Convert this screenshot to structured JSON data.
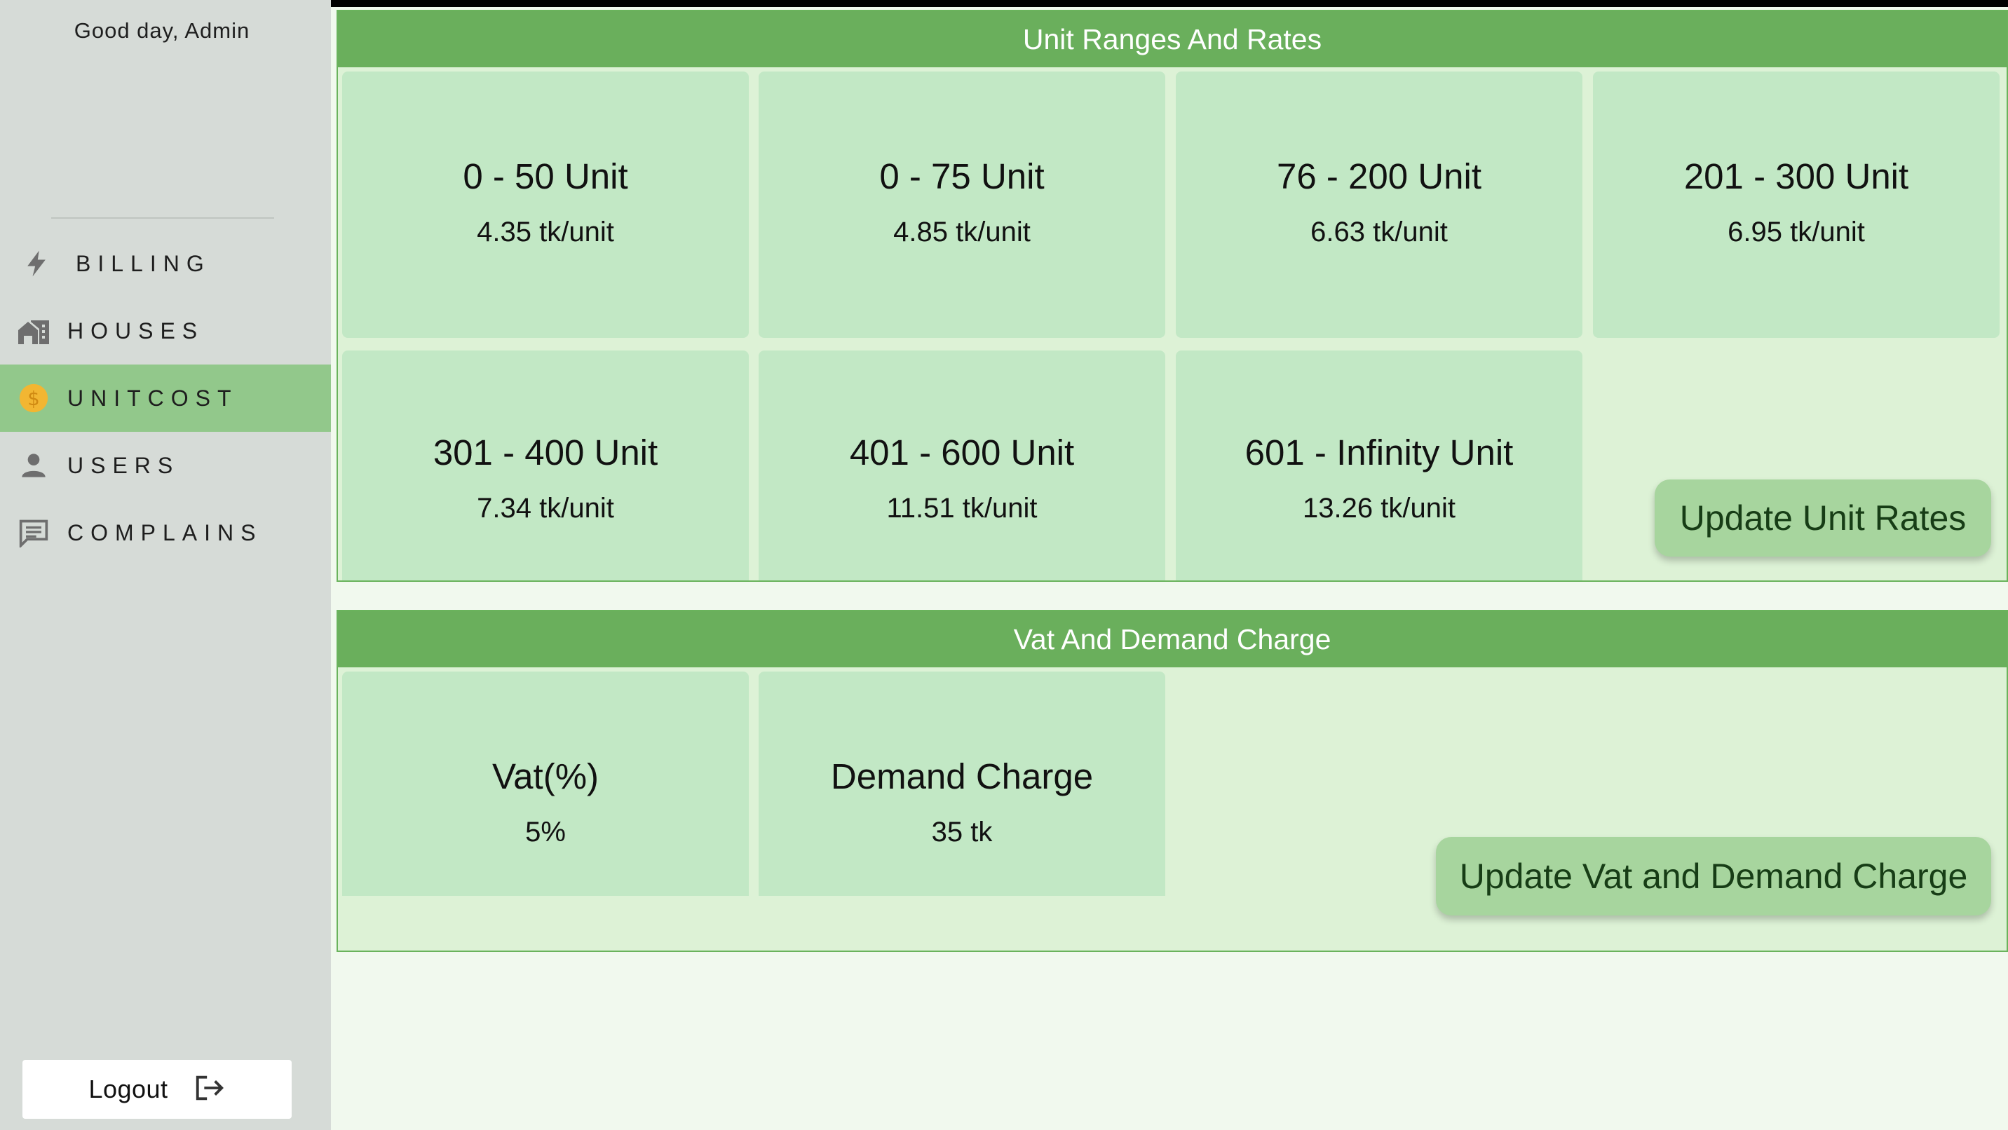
{
  "sidebar": {
    "greeting": "Good day, Admin",
    "items": [
      {
        "label": "BILLING",
        "icon": "lightning-icon",
        "active": false
      },
      {
        "label": "HOUSES",
        "icon": "houses-icon",
        "active": false
      },
      {
        "label": "UNITCOST",
        "icon": "dollar-coin-icon",
        "active": true
      },
      {
        "label": "USERS",
        "icon": "person-icon",
        "active": false
      },
      {
        "label": "COMPLAINS",
        "icon": "chat-icon",
        "active": false
      }
    ],
    "logout_label": "Logout"
  },
  "unit_rates": {
    "title": "Unit Ranges And Rates",
    "cards": [
      {
        "range": "0 - 50 Unit",
        "rate": "4.35 tk/unit"
      },
      {
        "range": "0 - 75 Unit",
        "rate": "4.85 tk/unit"
      },
      {
        "range": "76 - 200 Unit",
        "rate": "6.63 tk/unit"
      },
      {
        "range": "201 - 300 Unit",
        "rate": "6.95 tk/unit"
      },
      {
        "range": "301 - 400 Unit",
        "rate": "7.34 tk/unit"
      },
      {
        "range": "401 - 600 Unit",
        "rate": "11.51 tk/unit"
      },
      {
        "range": "601 - Infinity Unit",
        "rate": "13.26 tk/unit"
      }
    ],
    "update_button": "Update Unit Rates"
  },
  "vat_demand": {
    "title": "Vat And Demand Charge",
    "cards": [
      {
        "label": "Vat(%)",
        "value": "5%"
      },
      {
        "label": "Demand Charge",
        "value": "35 tk"
      }
    ],
    "update_button": "Update Vat and Demand Charge"
  },
  "colors": {
    "accent": "#6aaf5c",
    "active_nav": "#92c88b",
    "card": "#c2e8c5",
    "coin": "#f2b632"
  }
}
